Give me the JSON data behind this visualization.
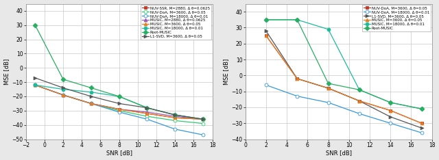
{
  "left": {
    "snr": [
      -1,
      2,
      5,
      8,
      11,
      14,
      17
    ],
    "series": [
      {
        "label": "NUV-SSR, M=2880, Δ θ=0.0625",
        "color": "#c0392b",
        "marker": "s",
        "markerface": "#c0392b",
        "values": [
          -12,
          -19,
          -25,
          -29,
          -32,
          -35,
          -36
        ]
      },
      {
        "label": "NUV-DoA, M=3600, Δ θ=0.05",
        "color": "#2ecc71",
        "marker": "o",
        "markerface": "white",
        "values": [
          -12,
          -19,
          -25,
          -30,
          -34,
          -37,
          -39
        ]
      },
      {
        "label": "NUV-DoA, M=18000, Δ θ=0.01",
        "color": "#3498db",
        "marker": "o",
        "markerface": "white",
        "values": [
          -12,
          -19,
          -25,
          -31,
          -36,
          -43,
          -47
        ]
      },
      {
        "label": "MUSIC, M=2880, Δ θ=0.0625",
        "color": "#9b59b6",
        "marker": "^",
        "markerface": "#9b59b6",
        "values": [
          -12,
          -19,
          -25,
          -29,
          -31,
          -34,
          -36
        ]
      },
      {
        "label": "MUSIC, M=3600, Δ θ=0.05",
        "color": "#e67e22",
        "marker": "^",
        "markerface": "#e67e22",
        "values": [
          -12,
          -19,
          -25,
          -29,
          -32,
          -35,
          -36
        ]
      },
      {
        "label": "MUSIC, M=18000, Δ θ=0.01",
        "color": "#1abc9c",
        "marker": "o",
        "markerface": "#1abc9c",
        "values": [
          -12,
          -15,
          -17,
          -20,
          -28,
          -33,
          -36
        ]
      },
      {
        "label": "Root-MUSIC",
        "color": "#27ae60",
        "marker": "D",
        "markerface": "#27ae60",
        "values": [
          30,
          -8,
          -14,
          -20,
          -28,
          -33,
          -36
        ]
      },
      {
        "label": "L1-SVD, M=3600, Δ θ=0.05",
        "color": "#555555",
        "marker": ">",
        "markerface": "#555555",
        "values": [
          -7,
          -14,
          -20,
          -25,
          -28,
          -33,
          -36
        ]
      }
    ],
    "xlim": [
      -2,
      18
    ],
    "ylim": [
      -50,
      45
    ],
    "xticks": [
      -2,
      0,
      2,
      4,
      6,
      8,
      10,
      12,
      14,
      16,
      18
    ],
    "yticks": [
      -50,
      -40,
      -30,
      -20,
      -10,
      0,
      10,
      20,
      30,
      40
    ],
    "xlabel": "SNR [dB]",
    "ylabel": "MSE [dB]"
  },
  "right": {
    "snr": [
      2,
      5,
      8,
      11,
      14,
      17
    ],
    "series": [
      {
        "label": "NUV-DoA, M=3600, Δ θ=0.05",
        "color": "#c0392b",
        "marker": "s",
        "markerface": "#c0392b",
        "values": [
          25,
          -2,
          -8,
          -16,
          -22,
          -30
        ]
      },
      {
        "label": "NUV-DoA, M=18000, Δ θ=0.01",
        "color": "#3498db",
        "marker": "o",
        "markerface": "white",
        "values": [
          -6,
          -13,
          -17,
          -24,
          -30,
          -36
        ]
      },
      {
        "label": "L1-SVD, M=3600, Δ θ=0.05",
        "color": "#555555",
        "marker": ">",
        "markerface": "#555555",
        "values": [
          28,
          -2,
          -8,
          -16,
          -26,
          -33
        ]
      },
      {
        "label": "MUSIC, M=3600, Δ θ=0.05",
        "color": "#e67e22",
        "marker": "^",
        "markerface": "#e67e22",
        "values": [
          25,
          -2,
          -8,
          -16,
          -22,
          -30
        ]
      },
      {
        "label": "MUSIC, M=18000, Δ θ=0.01",
        "color": "#1abc9c",
        "marker": "o",
        "markerface": "#1abc9c",
        "values": [
          35,
          35,
          29,
          -9,
          -17,
          -21
        ]
      },
      {
        "label": "Root-MUSIC",
        "color": "#27ae60",
        "marker": "D",
        "markerface": "#27ae60",
        "values": [
          35,
          35,
          -5,
          -9,
          -17,
          -21
        ]
      }
    ],
    "xlim": [
      0,
      18
    ],
    "ylim": [
      -40,
      45
    ],
    "xticks": [
      0,
      2,
      4,
      6,
      8,
      10,
      12,
      14,
      16,
      18
    ],
    "yticks": [
      -40,
      -30,
      -20,
      -10,
      0,
      10,
      20,
      30,
      40
    ],
    "xlabel": "SNR [dB]",
    "ylabel": "MSE [dB]"
  },
  "fig_bg": "#e8e8e8",
  "ax_bg": "#ffffff",
  "grid_color": "#c8c8c8",
  "marker_size": 3.5,
  "linewidth": 0.9,
  "tick_fontsize": 5.5,
  "label_fontsize": 6.0,
  "legend_fontsize": 4.0
}
